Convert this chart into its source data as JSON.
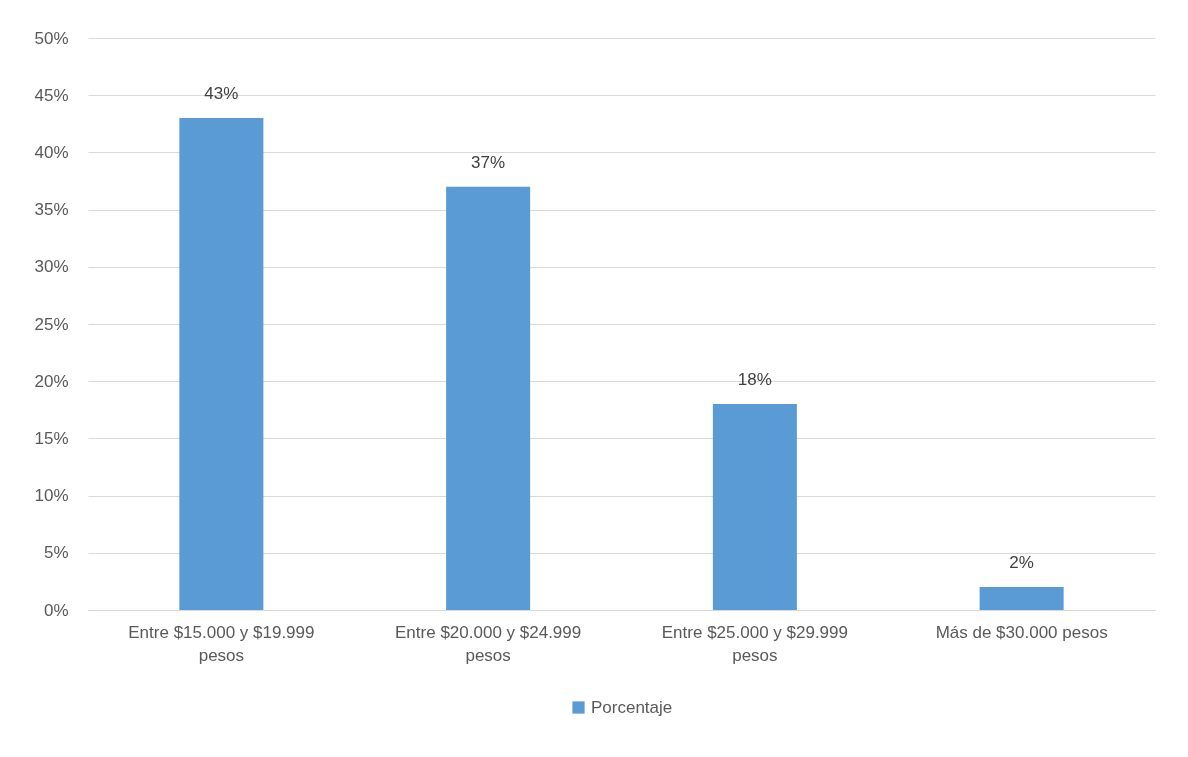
{
  "chart_data": {
    "type": "bar",
    "categories": [
      "Entre $15.000 y $19.999 pesos",
      "Entre $20.000 y $24.999 pesos",
      "Entre $25.000 y $29.999 pesos",
      "Más de $30.000 pesos"
    ],
    "series": [
      {
        "name": "Porcentaje",
        "color": "#5b9bd5",
        "values": [
          43,
          37,
          18,
          2
        ],
        "value_labels": [
          "43%",
          "37%",
          "18%",
          "2%"
        ]
      }
    ],
    "ylim": [
      0,
      50
    ],
    "yticks": [
      {
        "value": 0,
        "label": "0%"
      },
      {
        "value": 5,
        "label": "5%"
      },
      {
        "value": 10,
        "label": "10%"
      },
      {
        "value": 15,
        "label": "15%"
      },
      {
        "value": 20,
        "label": "20%"
      },
      {
        "value": 25,
        "label": "25%"
      },
      {
        "value": 30,
        "label": "30%"
      },
      {
        "value": 35,
        "label": "35%"
      },
      {
        "value": 40,
        "label": "40%"
      },
      {
        "value": 45,
        "label": "45%"
      },
      {
        "value": 50,
        "label": "50%"
      }
    ],
    "grid": "y",
    "legend": "bottom"
  }
}
